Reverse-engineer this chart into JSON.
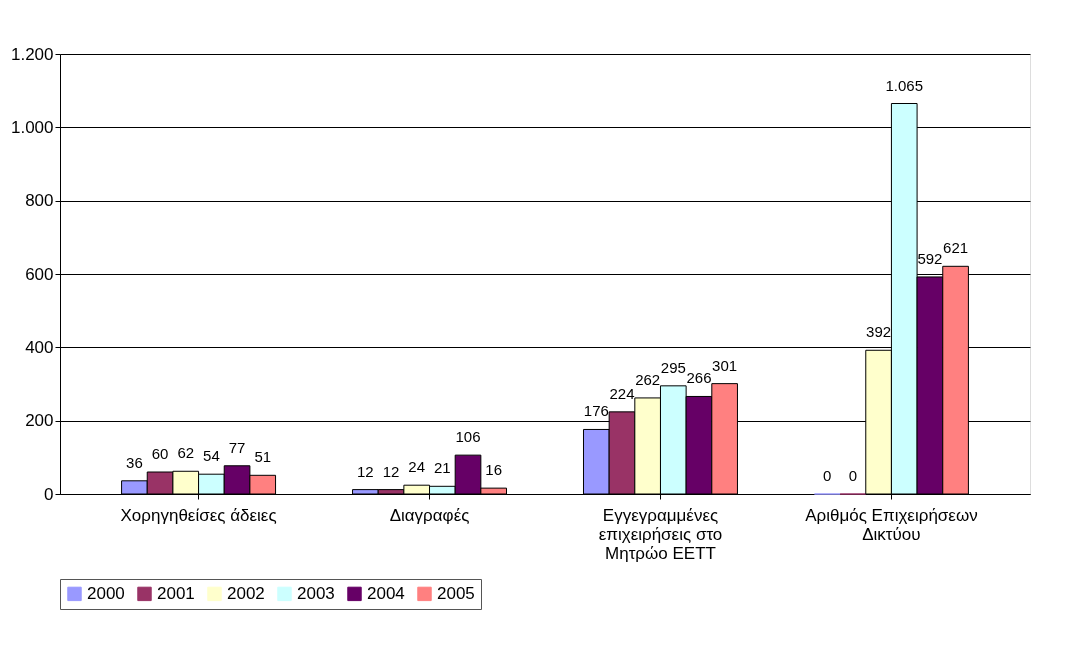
{
  "chart_data": {
    "type": "bar",
    "categories": [
      "Χορηγηθείσες άδειες",
      "Διαγραφές",
      "Εγγεγραμμένες επιχειρήσεις στο Μητρώο ΕΕΤΤ",
      "Αριθμός Επιχειρήσεων Δικτύου"
    ],
    "series": [
      {
        "name": "2000",
        "color": "#9999ff",
        "values": [
          36,
          12,
          176,
          0
        ],
        "value_labels": [
          "36",
          "12",
          "176",
          "0"
        ]
      },
      {
        "name": "2001",
        "color": "#993366",
        "values": [
          60,
          12,
          224,
          0
        ],
        "value_labels": [
          "60",
          "12",
          "224",
          "0"
        ]
      },
      {
        "name": "2002",
        "color": "#ffffcc",
        "values": [
          62,
          24,
          262,
          392
        ],
        "value_labels": [
          "62",
          "24",
          "262",
          "392"
        ]
      },
      {
        "name": "2003",
        "color": "#ccffff",
        "values": [
          54,
          21,
          295,
          1065
        ],
        "value_labels": [
          "54",
          "21",
          "295",
          "1.065"
        ]
      },
      {
        "name": "2004",
        "color": "#660066",
        "values": [
          77,
          106,
          266,
          592
        ],
        "value_labels": [
          "77",
          "106",
          "266",
          "592"
        ]
      },
      {
        "name": "2005",
        "color": "#ff8080",
        "values": [
          51,
          16,
          301,
          621
        ],
        "value_labels": [
          "51",
          "16",
          "301",
          "621"
        ]
      }
    ],
    "ylim": [
      0,
      1200
    ],
    "yticks": [
      0,
      200,
      400,
      600,
      800,
      {
        "value": 1000,
        "label": "1.000"
      },
      {
        "value": 1200,
        "label": "1.200"
      }
    ],
    "grid": "y",
    "legend": "bottom"
  }
}
